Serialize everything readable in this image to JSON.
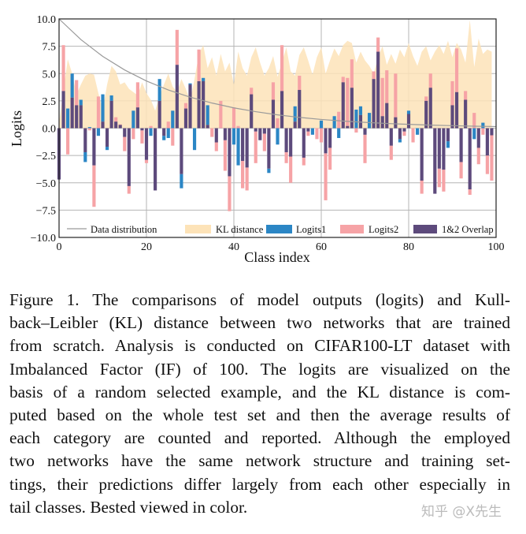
{
  "chart_data": {
    "type": "bar",
    "xlabel": "Class index",
    "ylabel": "Logits",
    "xlim": [
      0,
      100
    ],
    "ylim": [
      -10,
      10
    ],
    "xticks": [
      "0",
      "20",
      "40",
      "60",
      "80",
      "100"
    ],
    "yticks": [
      "10.0",
      "7.5",
      "5.0",
      "2.5",
      "0.0",
      "−2.5",
      "−5.0",
      "−7.5",
      "−10.0"
    ],
    "grid": true,
    "legend_position": "bottom-inside",
    "legend": [
      "Data distribution",
      "KL distance",
      "Logits1",
      "Logits2",
      "1&2 Overlap"
    ],
    "colors": {
      "data_distribution": "#9a9a9a",
      "kl": "#fde3b8",
      "logits1": "#2b86c5",
      "logits2": "#f6a3a6",
      "overlap": "#5d4a7c"
    },
    "data_distribution": {
      "x": [
        0,
        5,
        10,
        15,
        20,
        25,
        30,
        35,
        40,
        45,
        50,
        55,
        60,
        65,
        70,
        75,
        80,
        85,
        90,
        95,
        100
      ],
      "y": [
        10.0,
        8.11,
        6.57,
        5.33,
        4.32,
        3.5,
        2.84,
        2.3,
        1.86,
        1.51,
        1.22,
        0.99,
        0.8,
        0.65,
        0.53,
        0.43,
        0.35,
        0.28,
        0.23,
        0.18,
        0.15
      ]
    },
    "kl_distance": [
      0.5,
      3.5,
      6.3,
      5.0,
      3.1,
      4.0,
      4.8,
      5.0,
      4.9,
      3.2,
      1.7,
      4.0,
      5.7,
      5.2,
      4.0,
      4.2,
      3.6,
      3.3,
      3.0,
      4.2,
      3.2,
      2.6,
      1.6,
      3.0,
      4.0,
      5.0,
      3.8,
      3.3,
      4.5,
      3.6,
      2.5,
      4.5,
      6.8,
      7.6,
      5.5,
      6.5,
      4.8,
      6.8,
      5.2,
      6.0,
      4.0,
      7.0,
      5.5,
      4.8,
      6.5,
      7.4,
      6.0,
      4.8,
      5.5,
      6.6,
      4.7,
      6.0,
      7.4,
      5.2,
      4.8,
      6.7,
      7.4,
      6.2,
      4.9,
      6.5,
      7.4,
      5.0,
      6.2,
      7.3,
      6.6,
      7.6,
      8.0,
      7.8,
      6.0,
      7.0,
      6.2,
      5.7,
      5.0,
      6.5,
      7.5,
      5.8,
      6.8,
      5.9,
      7.2,
      6.5,
      7.8,
      6.6,
      5.7,
      7.0,
      7.5,
      6.2,
      7.0,
      7.6,
      6.8,
      8.0,
      6.5,
      7.8,
      7.2,
      6.0,
      9.9,
      5.6,
      8.2,
      6.8,
      7.2,
      7.0
    ],
    "logits1": [
      -4.7,
      3.4,
      1.8,
      5.0,
      2.1,
      2.6,
      -3.1,
      0.1,
      -3.4,
      -0.7,
      3.1,
      -2.0,
      3.0,
      0.6,
      0.3,
      -0.8,
      -5.3,
      1.6,
      1.9,
      -0.2,
      -2.9,
      -0.7,
      -5.7,
      4.5,
      -1.1,
      -0.9,
      1.6,
      5.8,
      -5.5,
      1.8,
      4.1,
      -2.0,
      4.3,
      4.6,
      2.1,
      0,
      -1.3,
      0,
      -1.1,
      -4.4,
      -1.5,
      -3.4,
      -3.0,
      -3.6,
      3.1,
      -0.3,
      -1.1,
      -0.5,
      -4.1,
      2.6,
      -1.5,
      3.4,
      -2.2,
      -2.6,
      2.0,
      3.5,
      -2.7,
      -0.3,
      -0.6,
      0,
      0.7,
      -2.3,
      -1.8,
      1.1,
      -0.9,
      4.2,
      0.2,
      3.7,
      1.7,
      2.0,
      -0.6,
      1.4,
      4.5,
      7.0,
      1.1,
      2.3,
      -1.6,
      1.0,
      -1.3,
      -0.3,
      1.6,
      0,
      -0.6,
      -4.8,
      2.5,
      3.7,
      -6.0,
      -3.7,
      -3.8,
      -1.8,
      2.1,
      3.3,
      -3.1,
      2.6,
      -5.6,
      -1.0,
      -1.8,
      0.5,
      -2.5,
      -0.65
    ],
    "logits2": [
      -4.7,
      7.6,
      -2.4,
      2.8,
      4.4,
      2.1,
      -2.2,
      -0.2,
      -7.2,
      2.9,
      0.6,
      -1.7,
      2.5,
      1.0,
      0.35,
      -2.1,
      -6.0,
      -1.0,
      4.2,
      -1.4,
      -3.2,
      0.2,
      -5.7,
      2.5,
      -0.7,
      0.6,
      -1.6,
      9.0,
      -4.2,
      2.3,
      4.0,
      0,
      7.2,
      4.3,
      0.3,
      -0.8,
      -2.1,
      2.5,
      -3.9,
      -7.6,
      1.9,
      0.2,
      -5.5,
      -5.7,
      3.7,
      -3.2,
      -1.1,
      -2.1,
      -3.7,
      4.2,
      0.9,
      7.6,
      -3.2,
      -5.0,
      0.6,
      4.8,
      -3.4,
      -0.7,
      0,
      -1.0,
      -1.3,
      -6.6,
      -3.8,
      0,
      1.5,
      4.7,
      4.6,
      6.3,
      -0.4,
      1.2,
      -3.2,
      0,
      5.2,
      8.3,
      4.6,
      5.3,
      -2.9,
      5.0,
      -1.0,
      -0.7,
      1.3,
      -1.3,
      0,
      -6.0,
      2.9,
      5.0,
      -6.0,
      -5.4,
      -5.8,
      -1.2,
      4.3,
      7.3,
      -4.6,
      3.4,
      -6.1,
      1.4,
      -3.3,
      -0.6,
      -4.2,
      -4.8
    ]
  },
  "caption": {
    "lines": [
      "Figure 1.  The comparisons of model outputs (logits) and Kull-",
      "back–Leibler (KL) distance between two networks that are trained",
      "from scratch. Analysis is conducted on CIFAR100-LT dataset with",
      "Imbalanced Factor (IF) of 100.  The logits are visualized on the",
      "basis of a random selected example, and the KL distance is com-",
      "puted based on the whole test set and then the average results of",
      "each category are counted and reported.  Although the employed",
      "two networks have the same network structure and training set-",
      "tings, their predictions differ largely from each other especially in",
      "tail classes. Bested viewed in color."
    ]
  },
  "watermark": "知乎 @X先生"
}
